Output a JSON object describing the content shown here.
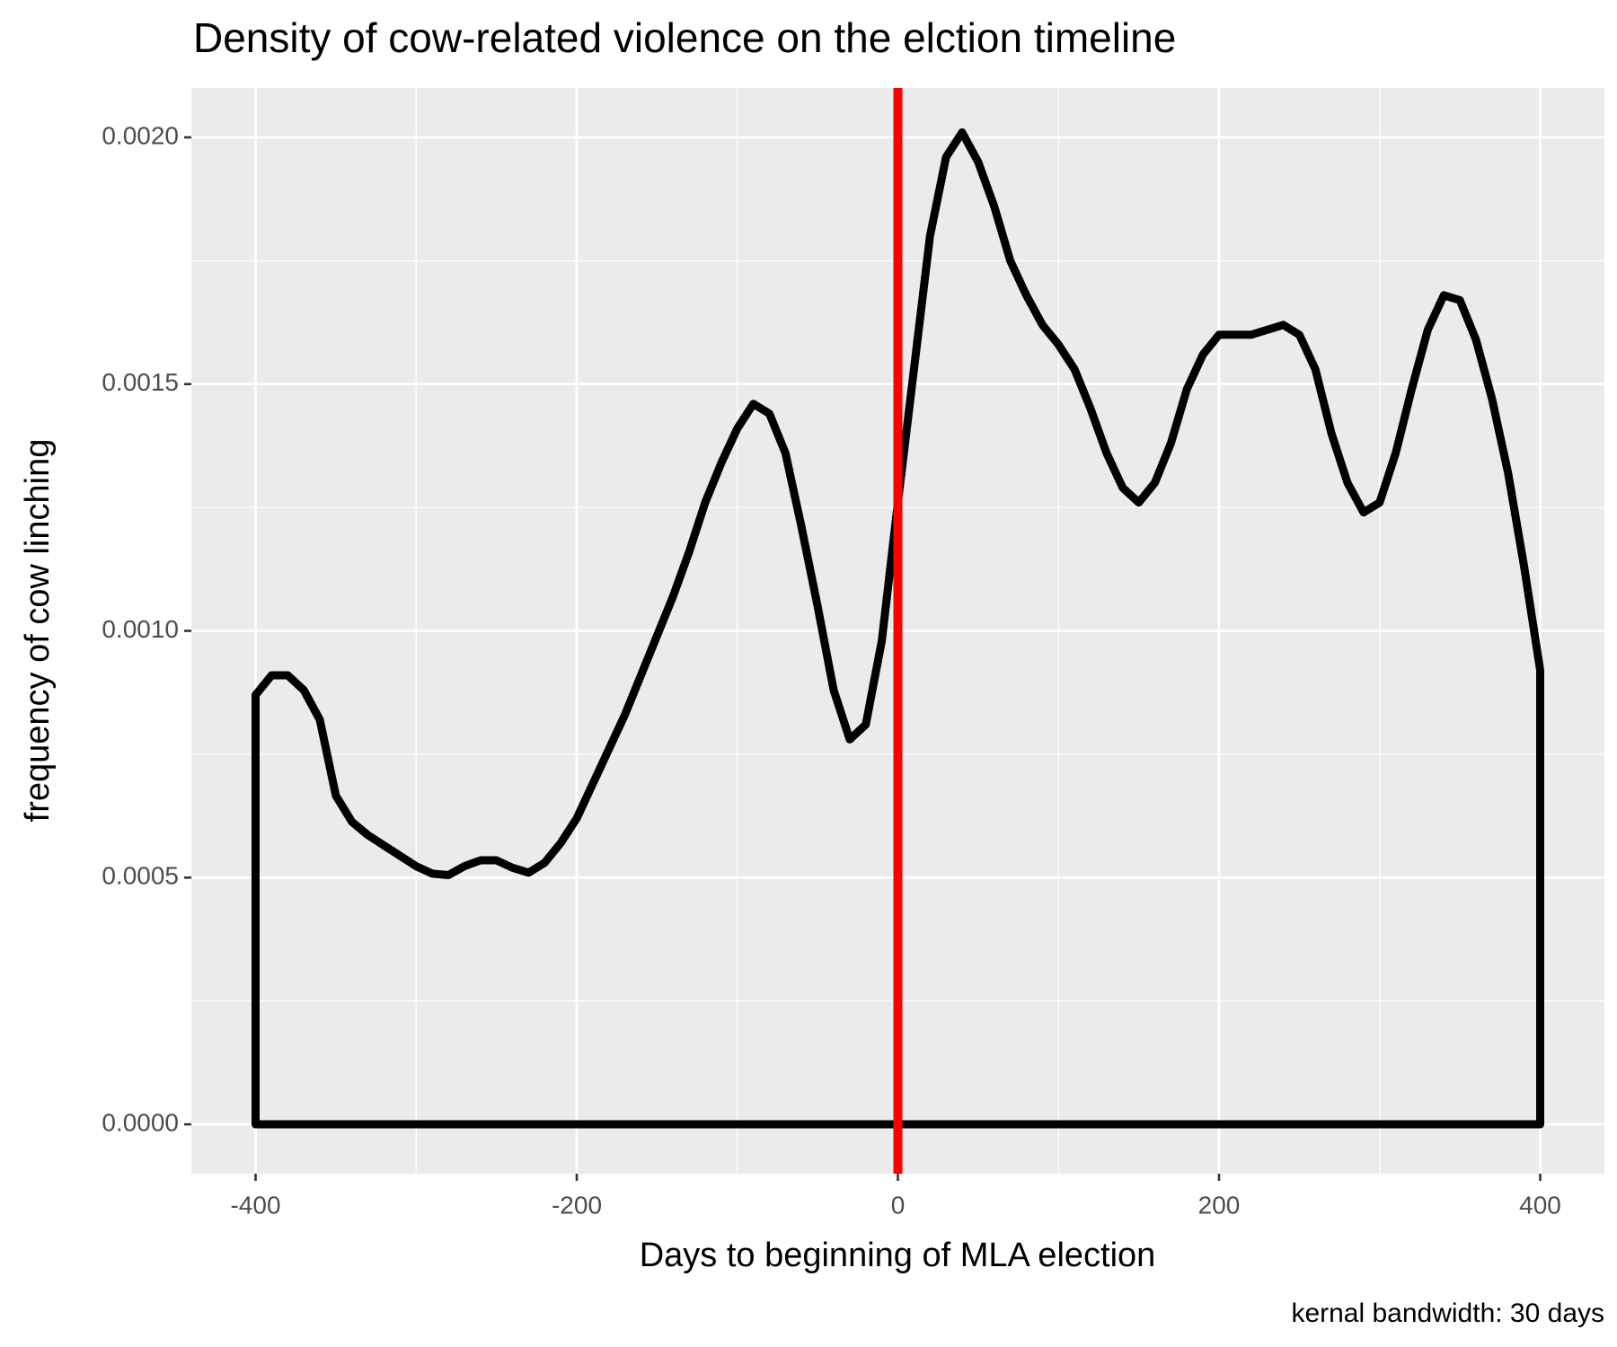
{
  "chart_data": {
    "type": "density",
    "title": "Density of cow-related violence on the elction timeline",
    "x_label": "Days to beginning of MLA election",
    "y_label": "frequency of cow linching",
    "caption": "kernal bandwidth: 30 days",
    "x": [
      -400,
      -390,
      -380,
      -370,
      -360,
      -350,
      -340,
      -330,
      -320,
      -310,
      -300,
      -290,
      -280,
      -270,
      -260,
      -250,
      -240,
      -230,
      -220,
      -210,
      -200,
      -190,
      -180,
      -170,
      -160,
      -150,
      -140,
      -130,
      -120,
      -110,
      -100,
      -90,
      -80,
      -70,
      -60,
      -50,
      -40,
      -30,
      -20,
      -10,
      0,
      10,
      20,
      30,
      40,
      50,
      60,
      70,
      80,
      90,
      100,
      110,
      120,
      130,
      140,
      150,
      160,
      170,
      180,
      190,
      200,
      210,
      220,
      230,
      240,
      250,
      260,
      270,
      280,
      290,
      300,
      310,
      320,
      330,
      340,
      350,
      360,
      370,
      380,
      390,
      400
    ],
    "series": [
      {
        "color": "#000000",
        "values": [
          0.00087,
          0.00091,
          0.00091,
          0.00088,
          0.00082,
          0.000666,
          0.000613,
          0.000586,
          0.000565,
          0.000544,
          0.000523,
          0.000508,
          0.000505,
          0.000523,
          0.000535,
          0.000535,
          0.00052,
          0.00051,
          0.00053,
          0.00057,
          0.00062,
          0.00069,
          0.00076,
          0.00083,
          0.00091,
          0.00099,
          0.00107,
          0.00116,
          0.00126,
          0.00134,
          0.00141,
          0.00146,
          0.00144,
          0.00136,
          0.00121,
          0.00105,
          0.00088,
          0.00078,
          0.00081,
          0.00098,
          0.00126,
          0.00153,
          0.0018,
          0.00196,
          0.00201,
          0.00195,
          0.00186,
          0.00175,
          0.00168,
          0.00162,
          0.00158,
          0.00153,
          0.00145,
          0.00136,
          0.00129,
          0.00126,
          0.0013,
          0.00138,
          0.00149,
          0.00156,
          0.0016,
          0.0016,
          0.0016,
          0.00161,
          0.00162,
          0.0016,
          0.00153,
          0.0014,
          0.0013,
          0.00124,
          0.00126,
          0.00136,
          0.00149,
          0.00161,
          0.00168,
          0.00167,
          0.00159,
          0.00147,
          0.00132,
          0.00113,
          0.00092
        ]
      }
    ],
    "vline": {
      "x": 0,
      "color": "#ff0000"
    },
    "xlim": [
      -440,
      440
    ],
    "ylim": [
      -0.0001,
      0.0021
    ],
    "xticks": [
      -400,
      -200,
      0,
      200,
      400
    ],
    "yticks": [
      {
        "value": 0,
        "label": "0.0000"
      },
      {
        "value": 0.0005,
        "label": "0.0005"
      },
      {
        "value": 0.001,
        "label": "0.0010"
      },
      {
        "value": 0.0015,
        "label": "0.0015"
      },
      {
        "value": 0.002,
        "label": "0.0020"
      }
    ],
    "x_minor_grid": [
      -300,
      -100,
      100,
      300
    ],
    "y_minor_grid": [
      0.00025,
      0.00075,
      0.00125,
      0.00175
    ],
    "grid": true
  }
}
